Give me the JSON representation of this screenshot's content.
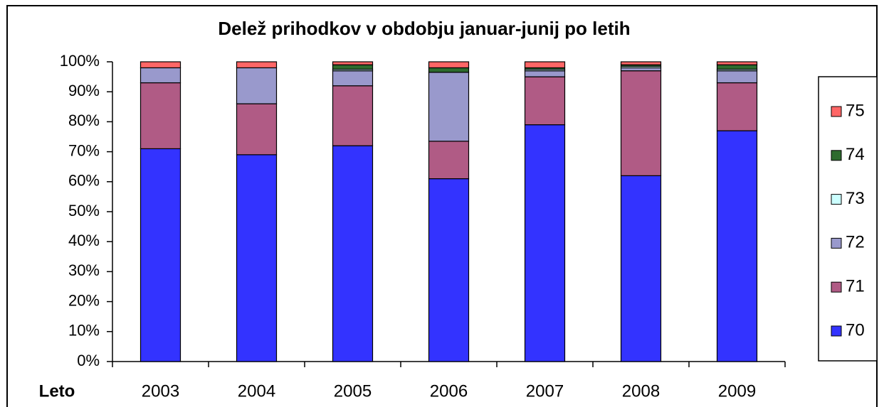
{
  "chart_data": {
    "type": "stacked_bar",
    "title": "Delež prihodkov v obdobju januar-junij po letih",
    "x_label": "Leto",
    "categories": [
      "2003",
      "2004",
      "2005",
      "2006",
      "2007",
      "2008",
      "2009"
    ],
    "series": [
      {
        "name": "70",
        "color": "#3333ff",
        "values": [
          71,
          69,
          72,
          61,
          79,
          62,
          77
        ]
      },
      {
        "name": "71",
        "color": "#b05b85",
        "values": [
          22,
          17,
          20,
          12.5,
          16,
          35,
          16
        ]
      },
      {
        "name": "72",
        "color": "#9999cc",
        "values": [
          5,
          12,
          5,
          23,
          2,
          1,
          4
        ]
      },
      {
        "name": "73",
        "color": "#ccffff",
        "values": [
          0,
          0,
          0.5,
          0,
          0.5,
          0.5,
          0.5
        ]
      },
      {
        "name": "74",
        "color": "#2e6b2e",
        "values": [
          0,
          0,
          1.5,
          1.5,
          0.5,
          0.5,
          1.5
        ]
      },
      {
        "name": "75",
        "color": "#ff6666",
        "values": [
          2,
          2,
          1,
          2,
          2,
          1,
          1
        ]
      }
    ],
    "ylim": [
      0,
      100
    ],
    "yticks": [
      {
        "value": 0,
        "label": "0%"
      },
      {
        "value": 10,
        "label": "10%"
      },
      {
        "value": 20,
        "label": "20%"
      },
      {
        "value": 30,
        "label": "30%"
      },
      {
        "value": 40,
        "label": "40%"
      },
      {
        "value": 50,
        "label": "50%"
      },
      {
        "value": 60,
        "label": "60%"
      },
      {
        "value": 70,
        "label": "70%"
      },
      {
        "value": 80,
        "label": "80%"
      },
      {
        "value": 90,
        "label": "90%"
      },
      {
        "value": 100,
        "label": "100%"
      }
    ],
    "legend": "right"
  }
}
